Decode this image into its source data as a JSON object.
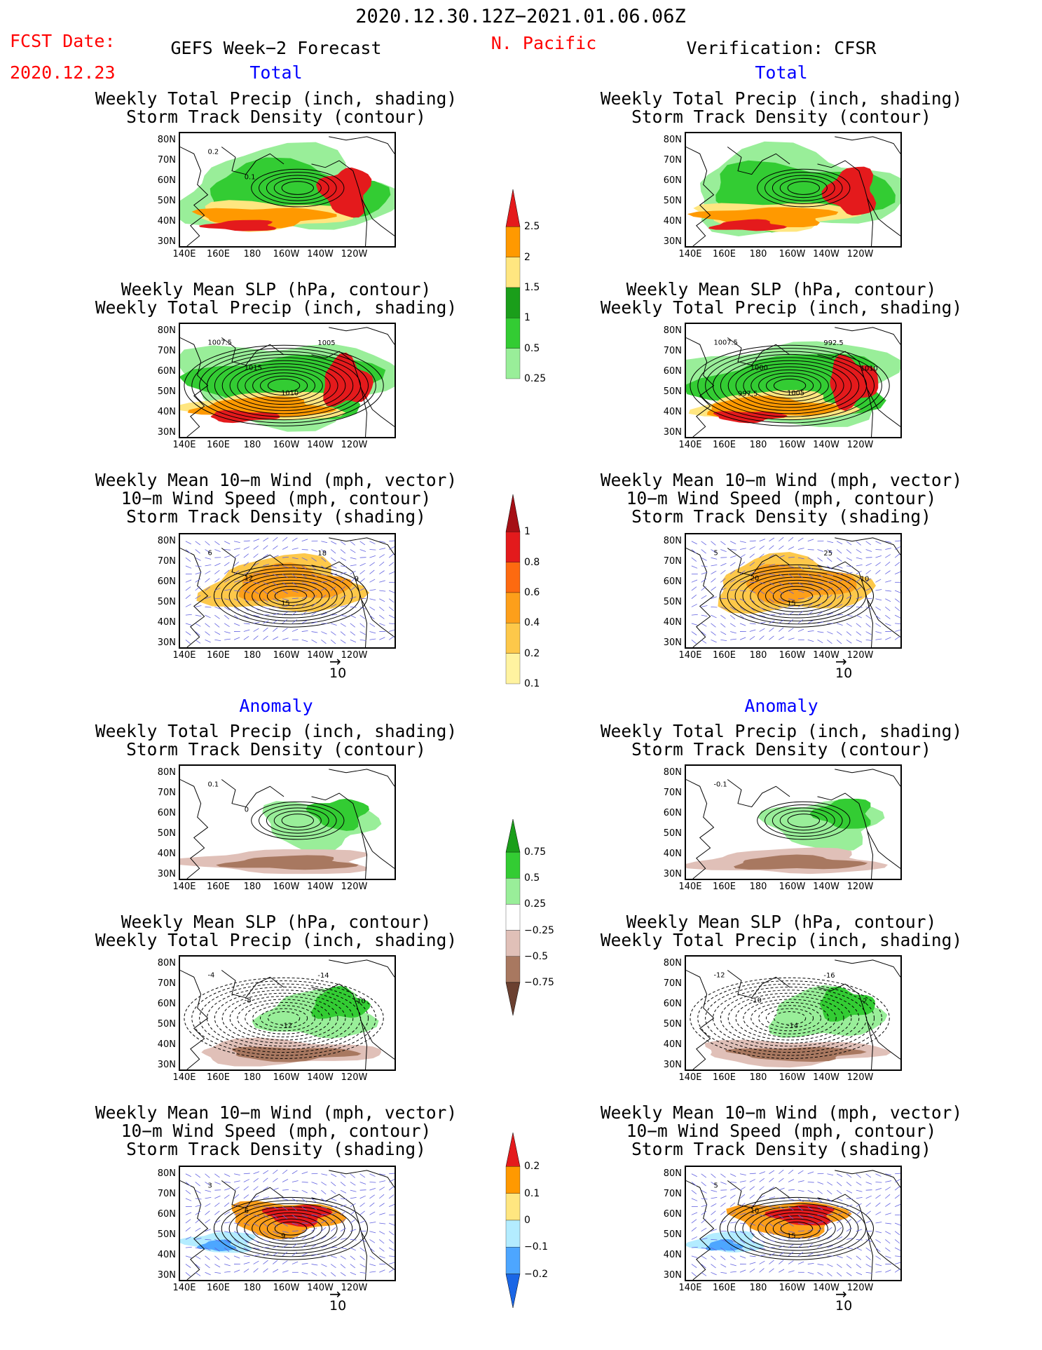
{
  "header": {
    "period": "2020.12.30.12Z−2021.01.06.06Z",
    "fcst_label": "FCST Date:",
    "fcst_date": "2020.12.23",
    "forecast_title": "GEFS Week−2 Forecast",
    "region": "N. Pacific",
    "verification": "Verification: CFSR"
  },
  "sections": {
    "total": "Total",
    "anomaly": "Anomaly"
  },
  "panel_titles": {
    "precip_storm": [
      "Weekly Total Precip (inch, shading)",
      "Storm Track Density (contour)"
    ],
    "slp_precip": [
      "Weekly Mean SLP (hPa, contour)",
      "Weekly Total Precip (inch, shading)"
    ],
    "wind_storm": [
      "Weekly Mean 10−m Wind (mph, vector)",
      "10−m Wind Speed (mph, contour)",
      "Storm Track Density (shading)"
    ]
  },
  "axes": {
    "lat_ticks": [
      "80N",
      "70N",
      "60N",
      "50N",
      "40N",
      "30N"
    ],
    "lon_ticks": [
      "140E",
      "160E",
      "180",
      "160W",
      "140W",
      "120W"
    ]
  },
  "reference_vector": "10",
  "contour_labels": {
    "left_precip_total": [
      "0.2",
      "0.1"
    ],
    "left_slp_total": [
      "1007.5",
      "1015",
      "1010",
      "1005"
    ],
    "right_slp_total": [
      "1007.5",
      "1000",
      "1005",
      "992.5",
      "1010",
      "997.5"
    ],
    "left_wind_total": [
      "6",
      "12",
      "15",
      "18",
      "9"
    ],
    "right_wind_total": [
      "5",
      "20",
      "15",
      "25",
      "10"
    ],
    "left_precip_anom": [
      "0.1",
      "0"
    ],
    "right_precip_anom": [
      "-0.1"
    ],
    "left_slp_anom": [
      "-4",
      "-8",
      "-12",
      "-14",
      "-10"
    ],
    "right_slp_anom": [
      "-12",
      "-10",
      "-14",
      "-16",
      "-2"
    ],
    "left_wind_anom": [
      "3",
      "6",
      "9"
    ],
    "right_wind_anom": [
      "5",
      "10",
      "15"
    ]
  },
  "colorbars": {
    "precip_total": {
      "labels": [
        "2.5",
        "2",
        "1.5",
        "1",
        "0.5",
        "0.25"
      ],
      "colors": [
        "#e41a1c",
        "#ff9900",
        "#ffe680",
        "#1a9e1a",
        "#33cc33",
        "#99ee99"
      ]
    },
    "storm_density_total": {
      "labels": [
        "1",
        "0.8",
        "0.6",
        "0.4",
        "0.2",
        "0.1"
      ],
      "colors": [
        "#a50f15",
        "#e31a1c",
        "#fd6a10",
        "#fd9f1a",
        "#fdc84a",
        "#fff3a0"
      ]
    },
    "precip_anom": {
      "labels": [
        "0.75",
        "0.5",
        "0.25",
        "−0.25",
        "−0.5",
        "−0.75"
      ],
      "colors": [
        "#1a9e1a",
        "#33cc33",
        "#99ee99",
        "#ffffff",
        "#e0c0b8",
        "#a87860",
        "#6b4030"
      ]
    },
    "storm_density_anom": {
      "labels": [
        "0.2",
        "0.1",
        "0",
        "−0.1",
        "−0.2"
      ],
      "colors": [
        "#e41a1c",
        "#ff9900",
        "#ffe680",
        "#b3ecff",
        "#4da6ff",
        "#1a66e6"
      ]
    }
  }
}
